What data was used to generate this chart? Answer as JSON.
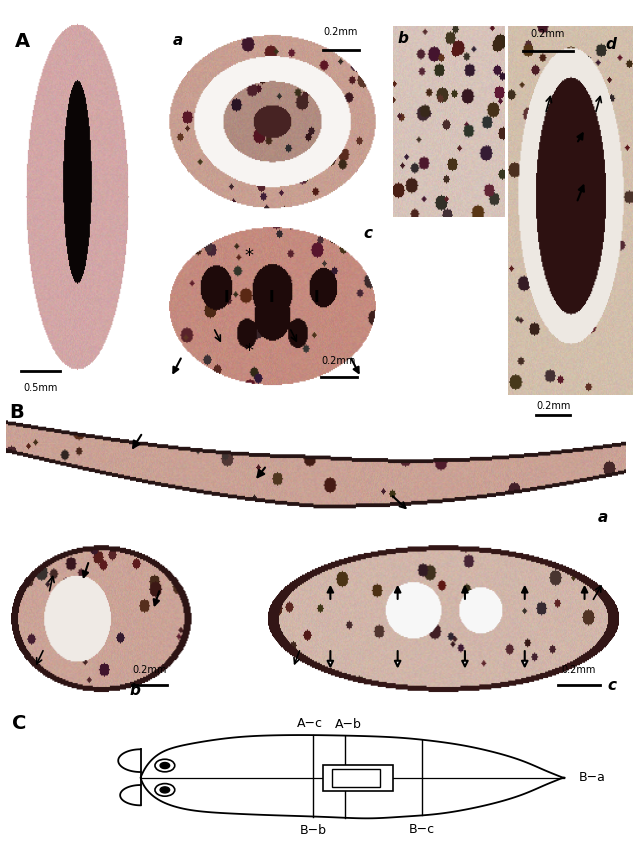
{
  "bg_color": "#ffffff",
  "fig_width": 6.39,
  "fig_height": 8.5,
  "section_A_label": "A",
  "section_B_label": "B",
  "section_C_label": "C",
  "sub_a_label": "a",
  "sub_b_label": "b",
  "sub_c_label": "c",
  "sub_d_label": "d",
  "scale_02mm": "0.2mm",
  "scale_05mm": "0.5mm",
  "Ba_label": "B−a",
  "Bb_label": "B−b",
  "Bc_label": "B−c",
  "Ac_label": "A−c",
  "Ab_label": "A−b",
  "tissue_pink": "#c89090",
  "tissue_dark": "#200808",
  "tissue_mid": "#b07070",
  "outline_color": "#000000",
  "diagram_bg": "#ffffff"
}
